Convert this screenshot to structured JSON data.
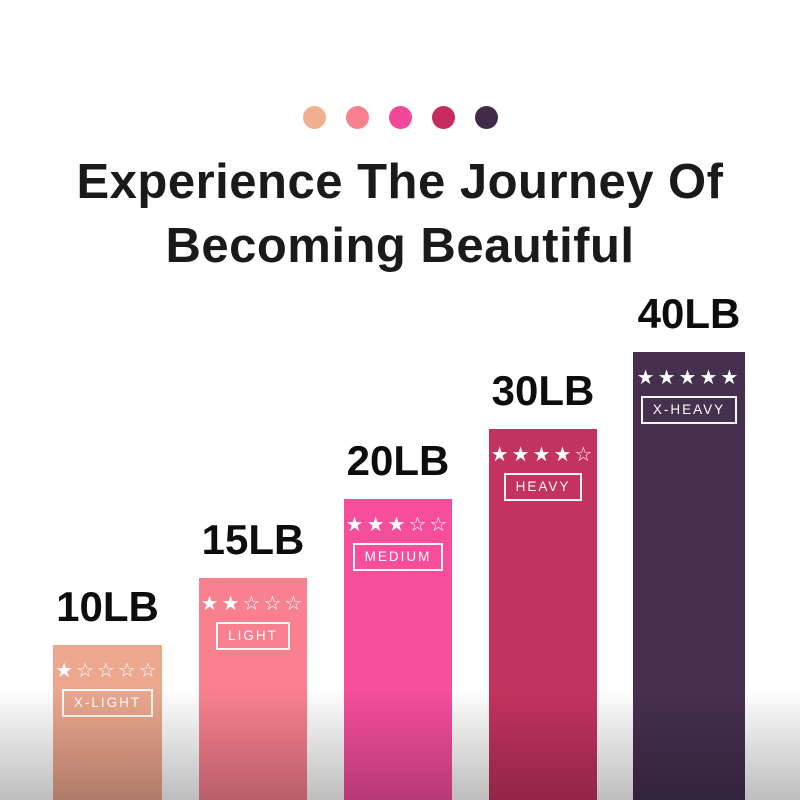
{
  "header": {
    "palette_dots": [
      "#F0AF8F",
      "#F9808F",
      "#F3479A",
      "#C52B5E",
      "#402C48"
    ],
    "title_line1": "Experience The Journey Of",
    "title_line2": "Becoming Beautiful",
    "title_color": "#1a1a1a"
  },
  "chart_data": {
    "type": "bar",
    "title": "Experience The Journey Of Becoming Beautiful",
    "categories": [
      "10LB",
      "15LB",
      "20LB",
      "30LB",
      "40LB"
    ],
    "values": [
      10,
      15,
      20,
      30,
      40
    ],
    "unit": "LB",
    "xlabel": "",
    "ylabel": "",
    "grid": false,
    "axes_visible": false,
    "legend": "none",
    "star_filled_glyph": "★",
    "star_empty_glyph": "☆",
    "label_text_color": "#ffffff",
    "bars": [
      {
        "weight_label": "10LB",
        "value_lb": 10,
        "resistance_label": "X-LIGHT",
        "stars_filled": 1,
        "stars_total": 5,
        "color": "#ECA78E"
      },
      {
        "weight_label": "15LB",
        "value_lb": 15,
        "resistance_label": "LIGHT",
        "stars_filled": 2,
        "stars_total": 5,
        "color": "#F9808F"
      },
      {
        "weight_label": "20LB",
        "value_lb": 20,
        "resistance_label": "MEDIUM",
        "stars_filled": 3,
        "stars_total": 5,
        "color": "#F64E9B"
      },
      {
        "weight_label": "30LB",
        "value_lb": 30,
        "resistance_label": "HEAVY",
        "stars_filled": 4,
        "stars_total": 5,
        "color": "#C4335F"
      },
      {
        "weight_label": "40LB",
        "value_lb": 40,
        "resistance_label": "X-HEAVY",
        "stars_filled": 5,
        "stars_total": 5,
        "color": "#45304E"
      }
    ]
  },
  "background": {
    "top_color": "#ffffff",
    "bottom_fade_color": "#bebebe"
  }
}
